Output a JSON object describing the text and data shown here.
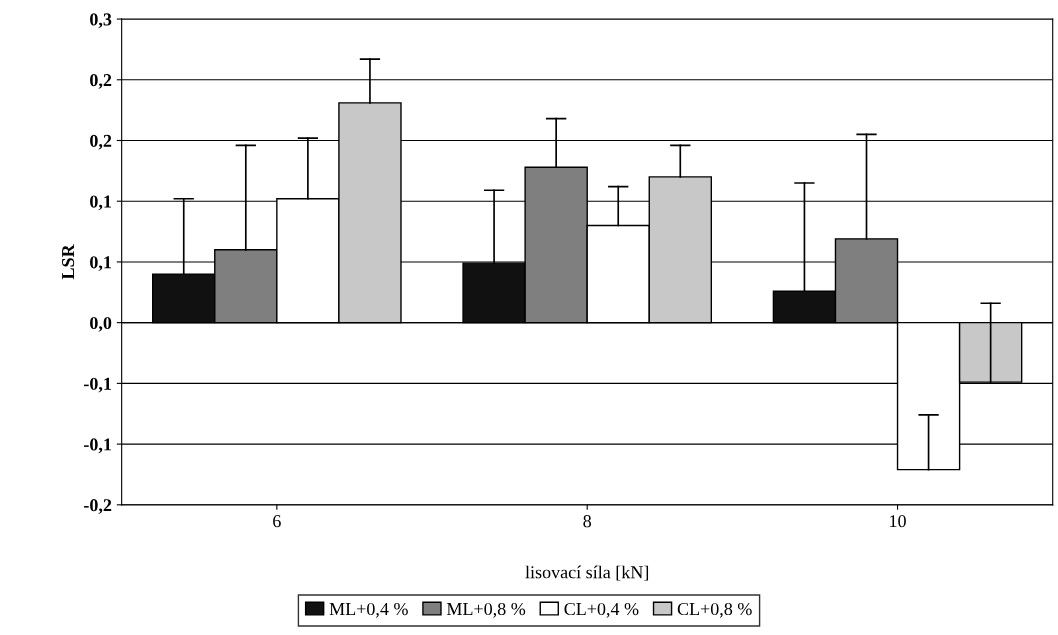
{
  "chart_data": {
    "type": "bar",
    "xlabel": "lisovací síla [kN]",
    "ylabel": "LSR",
    "categories": [
      "6",
      "8",
      "10"
    ],
    "series": [
      {
        "name": "ML+0,4 %",
        "color": "#111111",
        "values": [
          0.04,
          0.049,
          0.026
        ],
        "errors": [
          [
            0.04,
            0.102
          ],
          [
            0.049,
            0.109
          ],
          [
            0.026,
            0.115
          ]
        ]
      },
      {
        "name": "ML+0,8 %",
        "color": "#7f7f7f",
        "values": [
          0.06,
          0.128,
          0.069
        ],
        "errors": [
          [
            0.06,
            0.146
          ],
          [
            0.128,
            0.168
          ],
          [
            0.069,
            0.155
          ]
        ]
      },
      {
        "name": "CL+0,4 %",
        "color": "#ffffff",
        "values": [
          0.102,
          0.08,
          -0.121
        ],
        "errors": [
          [
            0.102,
            0.152
          ],
          [
            0.08,
            0.112
          ],
          [
            -0.121,
            -0.076
          ]
        ]
      },
      {
        "name": "CL+0,8 %",
        "color": "#c8c8c8",
        "values": [
          0.181,
          0.12,
          -0.049
        ],
        "errors": [
          [
            0.181,
            0.217
          ],
          [
            0.12,
            0.146
          ],
          [
            -0.049,
            0.016
          ]
        ]
      }
    ],
    "ylim": [
      -0.15,
      0.25
    ],
    "yticks": [
      {
        "value": -0.15,
        "label": "-0,2"
      },
      {
        "value": -0.1,
        "label": "-0,1"
      },
      {
        "value": -0.05,
        "label": "-0,1"
      },
      {
        "value": 0,
        "label": "0,0"
      },
      {
        "value": 0.05,
        "label": "0,1"
      },
      {
        "value": 0.1,
        "label": "0,1"
      },
      {
        "value": 0.15,
        "label": "0,2"
      },
      {
        "value": 0.2,
        "label": "0,2"
      },
      {
        "value": 0.25,
        "label": "0,3"
      }
    ],
    "grid": "y",
    "legend": "bottom"
  }
}
